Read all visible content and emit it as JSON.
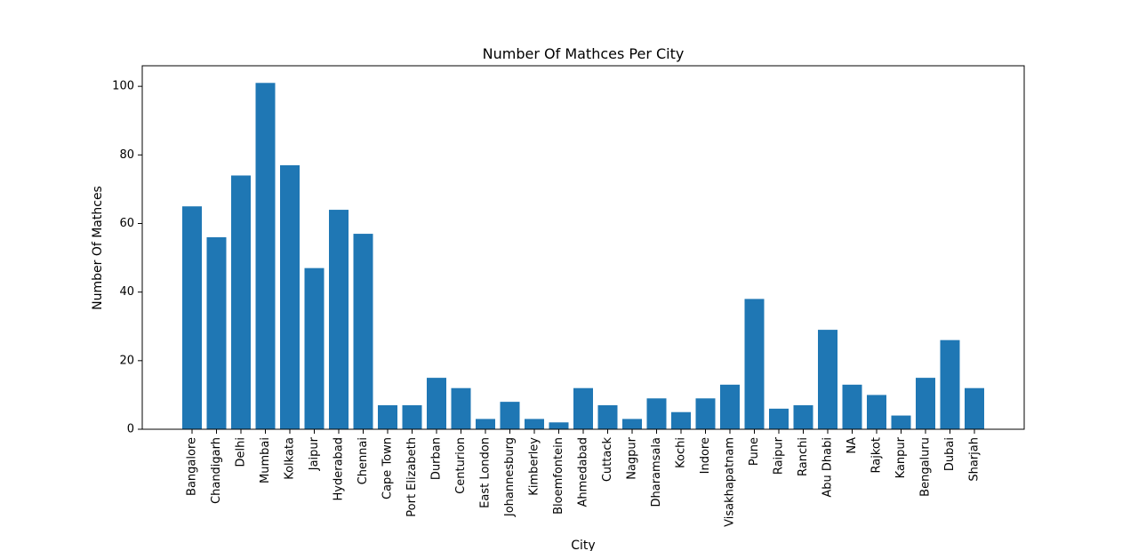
{
  "chart_data": {
    "type": "bar",
    "title": "Number Of Mathces Per City",
    "xlabel": "City",
    "ylabel": "Number Of Mathces",
    "categories": [
      "Bangalore",
      "Chandigarh",
      "Delhi",
      "Mumbai",
      "Kolkata",
      "Jaipur",
      "Hyderabad",
      "Chennai",
      "Cape Town",
      "Port Elizabeth",
      "Durban",
      "Centurion",
      "East London",
      "Johannesburg",
      "Kimberley",
      "Bloemfontein",
      "Ahmedabad",
      "Cuttack",
      "Nagpur",
      "Dharamsala",
      "Kochi",
      "Indore",
      "Visakhapatnam",
      "Pune",
      "Raipur",
      "Ranchi",
      "Abu Dhabi",
      "NA",
      "Rajkot",
      "Kanpur",
      "Bengaluru",
      "Dubai",
      "Sharjah"
    ],
    "values": [
      65,
      56,
      74,
      101,
      77,
      47,
      64,
      57,
      7,
      7,
      15,
      12,
      3,
      8,
      3,
      2,
      12,
      7,
      3,
      9,
      5,
      9,
      13,
      38,
      6,
      7,
      29,
      13,
      10,
      4,
      15,
      26,
      12
    ],
    "ylim": [
      0,
      106
    ],
    "yticks": [
      0,
      20,
      40,
      60,
      80,
      100
    ],
    "bar_color": "#1f77b4",
    "grid": false,
    "legend": "none"
  }
}
